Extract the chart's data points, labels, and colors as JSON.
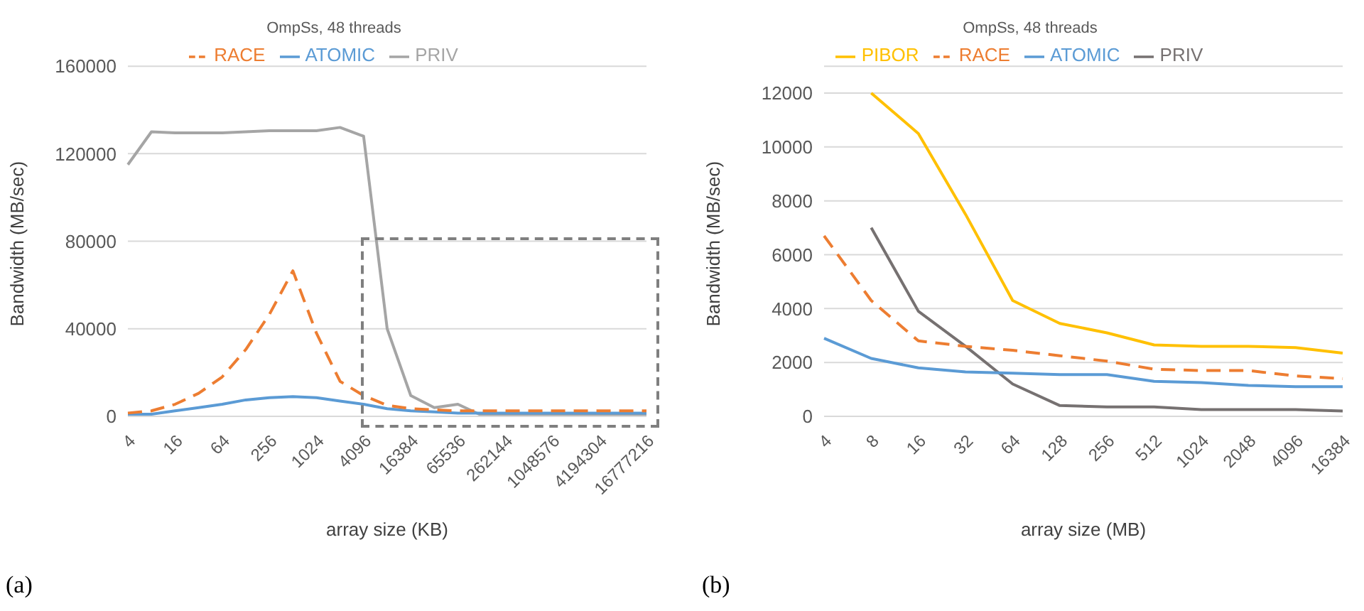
{
  "chart_data": [
    {
      "type": "line",
      "subtitle": "OmpSs, 48 threads",
      "xlabel": "array size (KB)",
      "ylabel": "Bandwidth (MB/sec)",
      "categories": [
        "4",
        null,
        "16",
        null,
        "64",
        null,
        "256",
        null,
        "1024",
        null,
        "4096",
        null,
        "16384",
        null,
        "65536",
        null,
        "262144",
        null,
        "1048576",
        null,
        "4194304",
        null,
        "16777216"
      ],
      "ylim": [
        0,
        160000
      ],
      "yticks": [
        0,
        40000,
        80000,
        120000,
        160000
      ],
      "grid": "y",
      "legend": "top",
      "annotations": [
        "(a)"
      ],
      "series": [
        {
          "name": "RACE",
          "color": "#ed7d31",
          "line_style": "dashed",
          "values": [
            1500,
            2500,
            5500,
            10500,
            18000,
            30500,
            46500,
            66500,
            38000,
            16000,
            9500,
            5000,
            3500,
            3000,
            2500,
            2500,
            2500,
            2500,
            2500,
            2500,
            2500,
            2500,
            2500
          ]
        },
        {
          "name": "ATOMIC",
          "color": "#5b9bd5",
          "values": [
            1000,
            1000,
            2500,
            4000,
            5500,
            7500,
            8500,
            9000,
            8500,
            7000,
            5500,
            3500,
            2500,
            2000,
            1500,
            1500,
            1500,
            1500,
            1500,
            1500,
            1500,
            1500,
            1500
          ]
        },
        {
          "name": "PRIV",
          "color": "#a5a5a5",
          "values": [
            115000,
            130000,
            129500,
            129500,
            129500,
            130000,
            130500,
            130500,
            130500,
            132000,
            128000,
            40000,
            9500,
            4000,
            5500,
            500,
            500,
            500,
            500,
            500,
            500,
            500,
            500
          ]
        }
      ]
    },
    {
      "type": "line",
      "subtitle": "OmpSs, 48 threads",
      "xlabel": "array size (MB)",
      "ylabel": "Bandwidth (MB/sec)",
      "categories": [
        "4",
        "8",
        "16",
        "32",
        "64",
        "128",
        "256",
        "512",
        "1024",
        "2048",
        "4096",
        "16384"
      ],
      "ylim": [
        0,
        13000
      ],
      "yticks": [
        0,
        2000,
        4000,
        6000,
        8000,
        10000,
        12000
      ],
      "grid": "y",
      "legend": "top",
      "annotations": [
        "(b)"
      ],
      "series": [
        {
          "name": "PIBOR",
          "color": "#ffc000",
          "values": [
            null,
            12000,
            10500,
            7500,
            4300,
            3450,
            3100,
            2650,
            2600,
            2600,
            2550,
            2350
          ]
        },
        {
          "name": "RACE",
          "color": "#ed7d31",
          "line_style": "dashed",
          "values": [
            6700,
            4300,
            2800,
            2600,
            2450,
            2250,
            2050,
            1750,
            1700,
            1700,
            1500,
            1400
          ]
        },
        {
          "name": "ATOMIC",
          "color": "#5b9bd5",
          "values": [
            2900,
            2150,
            1800,
            1650,
            1600,
            1550,
            1550,
            1300,
            1250,
            1150,
            1100,
            1100
          ]
        },
        {
          "name": "PRIV",
          "color": "#767171",
          "values": [
            null,
            7000,
            3900,
            2600,
            1200,
            400,
            350,
            350,
            250,
            250,
            250,
            200
          ]
        }
      ]
    }
  ]
}
